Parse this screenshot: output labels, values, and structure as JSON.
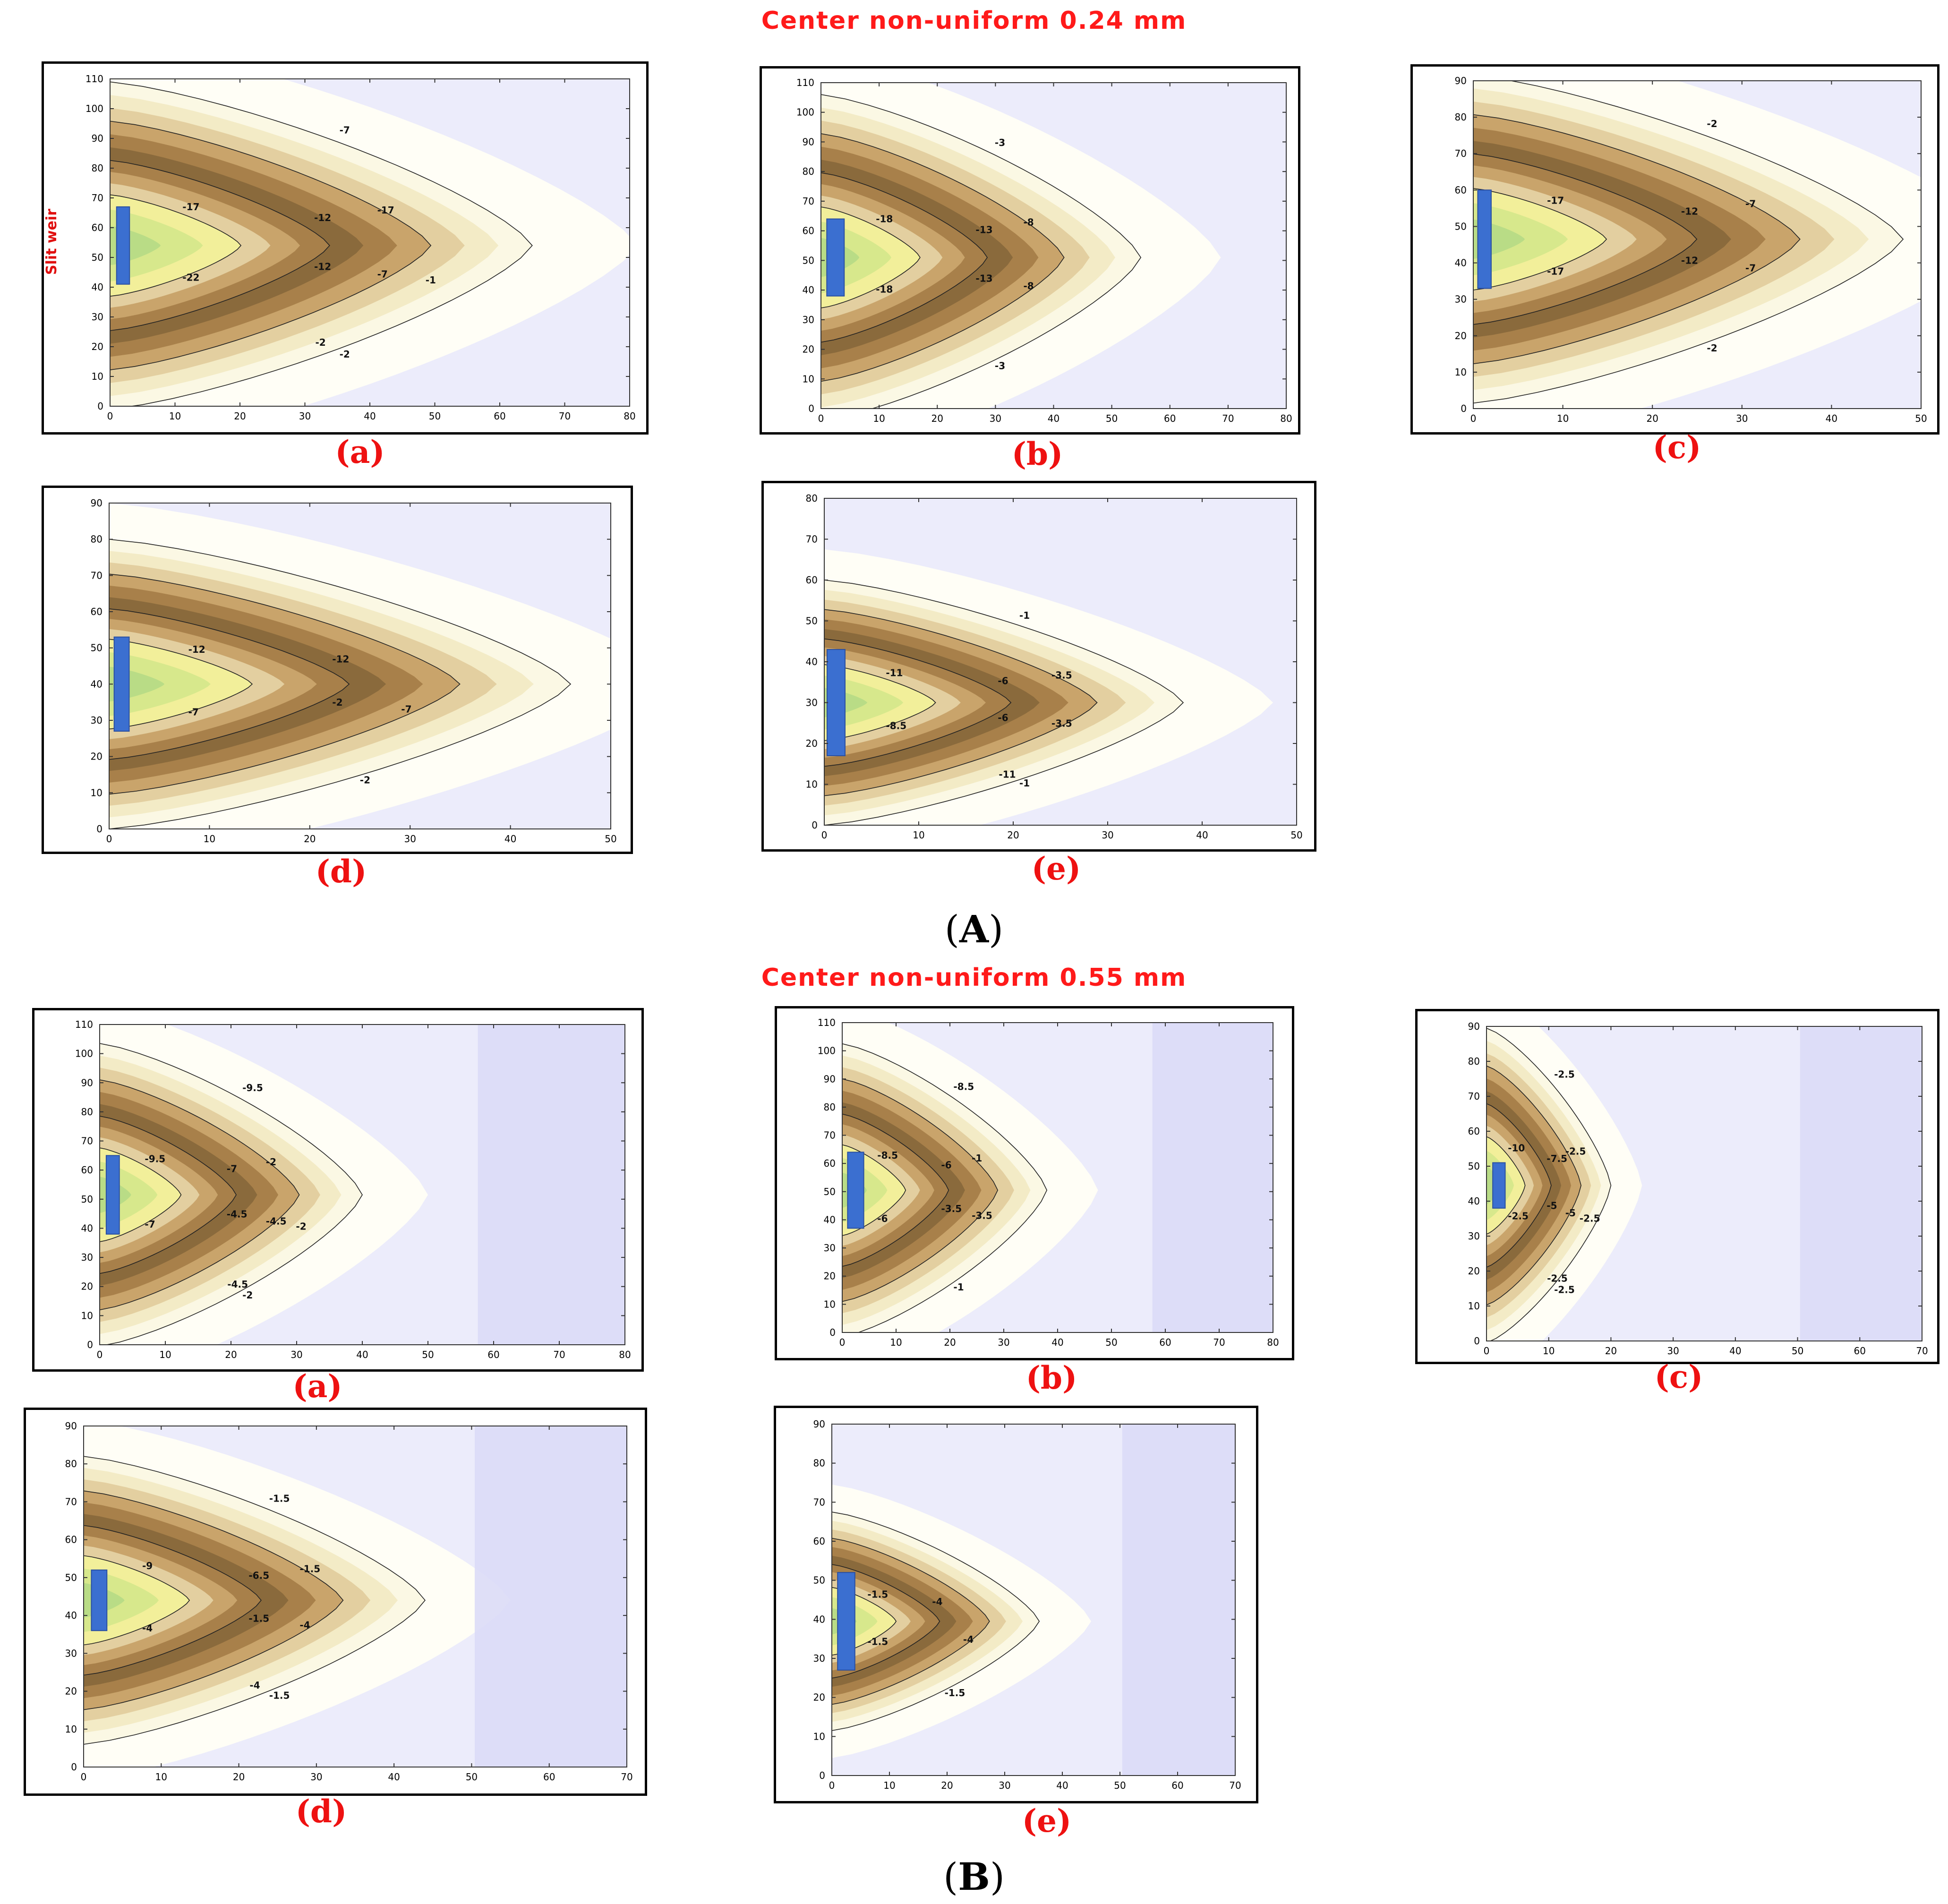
{
  "sections": [
    {
      "title": "Center non-uniform 0.24 mm",
      "mark_open": "(",
      "mark": "A",
      "mark_close": ")"
    },
    {
      "title": "Center non-uniform 0.55 mm",
      "mark_open": "(",
      "mark": "B",
      "mark_close": ")"
    }
  ],
  "colors": {
    "deep": "#8a6a3c",
    "brown": "#a8804a",
    "tan": "#c9a46b",
    "beige": "#e3cfa0",
    "cream": "#f3ebc6",
    "pale": "#fbf8e4",
    "yellow": "#f2ef9a",
    "lime": "#d7e88c",
    "green": "#b9dc86",
    "lavender": "#dcdcf7",
    "lightlav": "#ececfb",
    "weir": "#3b6fd0"
  },
  "chart_data": [
    {
      "type": "contour",
      "id": "A-a",
      "label": "(a)",
      "ylabel": "Slit weir",
      "xlim": [
        0,
        80
      ],
      "ylim": [
        0,
        110
      ],
      "xticks": [
        0,
        10,
        20,
        30,
        40,
        50,
        60,
        70,
        80
      ],
      "yticks": [
        0,
        10,
        20,
        30,
        40,
        50,
        60,
        70,
        80,
        90,
        100,
        110
      ],
      "weir": {
        "x": [
          1,
          3
        ],
        "y": [
          41,
          67
        ]
      },
      "min_contour": -22,
      "contour_labels": [
        "-2",
        "-7",
        "-12",
        "-17",
        "-22",
        "-12",
        "-17",
        "-7",
        "-2",
        "-1"
      ]
    },
    {
      "type": "contour",
      "id": "A-b",
      "label": "(b)",
      "ylabel": "",
      "xlim": [
        0,
        80
      ],
      "ylim": [
        0,
        110
      ],
      "xticks": [
        0,
        10,
        20,
        30,
        40,
        50,
        60,
        70,
        80
      ],
      "yticks": [
        0,
        10,
        20,
        30,
        40,
        50,
        60,
        70,
        80,
        90,
        100,
        110
      ],
      "weir": {
        "x": [
          1,
          4
        ],
        "y": [
          38,
          64
        ]
      },
      "min_contour": -18,
      "contour_labels": [
        "-3",
        "-8",
        "-13",
        "-18",
        "-18",
        "-13",
        "-8",
        "-3"
      ]
    },
    {
      "type": "contour",
      "id": "A-c",
      "label": "(c)",
      "ylabel": "",
      "xlim": [
        0,
        50
      ],
      "ylim": [
        0,
        90
      ],
      "xticks": [
        0,
        10,
        20,
        30,
        40,
        50
      ],
      "yticks": [
        0,
        10,
        20,
        30,
        40,
        50,
        60,
        70,
        80,
        90
      ],
      "weir": {
        "x": [
          0.5,
          2
        ],
        "y": [
          33,
          60
        ]
      },
      "min_contour": -17,
      "contour_labels": [
        "-2",
        "-7",
        "-12",
        "-17",
        "-17",
        "-12",
        "-7",
        "-2"
      ]
    },
    {
      "type": "contour",
      "id": "A-d",
      "label": "(d)",
      "ylabel": "",
      "xlim": [
        0,
        50
      ],
      "ylim": [
        0,
        90
      ],
      "xticks": [
        0,
        10,
        20,
        30,
        40,
        50
      ],
      "yticks": [
        0,
        10,
        20,
        30,
        40,
        50,
        60,
        70,
        80,
        90
      ],
      "weir": {
        "x": [
          0.5,
          2
        ],
        "y": [
          27,
          53
        ]
      },
      "min_contour": -12,
      "contour_labels": [
        "-2",
        "-7",
        "-12",
        "-12",
        "-7",
        "-2"
      ]
    },
    {
      "type": "contour",
      "id": "A-e",
      "label": "(e)",
      "ylabel": "",
      "xlim": [
        0,
        50
      ],
      "ylim": [
        0,
        80
      ],
      "xticks": [
        0,
        10,
        20,
        30,
        40,
        50
      ],
      "yticks": [
        0,
        10,
        20,
        30,
        40,
        50,
        60,
        70,
        80
      ],
      "weir": {
        "x": [
          0.3,
          2.2
        ],
        "y": [
          17,
          43
        ]
      },
      "min_contour": -11,
      "contour_labels": [
        "-1",
        "-3.5",
        "-6",
        "-11",
        "-8.5",
        "-6",
        "-3.5",
        "-1",
        "-11"
      ]
    },
    {
      "type": "contour",
      "id": "B-a",
      "label": "(a)",
      "ylabel": "",
      "xlim": [
        0,
        80
      ],
      "ylim": [
        0,
        110
      ],
      "xticks": [
        0,
        10,
        20,
        30,
        40,
        50,
        60,
        70,
        80
      ],
      "yticks": [
        0,
        10,
        20,
        30,
        40,
        50,
        60,
        70,
        80,
        90,
        100,
        110
      ],
      "weir": {
        "x": [
          1,
          3
        ],
        "y": [
          38,
          65
        ]
      },
      "min_contour": -9.5,
      "contour_labels": [
        "-2",
        "-4.5",
        "-7",
        "-9.5",
        "-7",
        "-4.5",
        "-2",
        "-9.5",
        "-4.5",
        "-2"
      ]
    },
    {
      "type": "contour",
      "id": "B-b",
      "label": "(b)",
      "ylabel": "",
      "xlim": [
        0,
        80
      ],
      "ylim": [
        0,
        110
      ],
      "xticks": [
        0,
        10,
        20,
        30,
        40,
        50,
        60,
        70,
        80
      ],
      "yticks": [
        0,
        10,
        20,
        30,
        40,
        50,
        60,
        70,
        80,
        90,
        100,
        110
      ],
      "weir": {
        "x": [
          1,
          4
        ],
        "y": [
          37,
          64
        ]
      },
      "min_contour": -8.5,
      "contour_labels": [
        "-1",
        "-3.5",
        "-6",
        "-8.5",
        "-6",
        "-3.5",
        "-1",
        "-8.5"
      ]
    },
    {
      "type": "contour",
      "id": "B-c",
      "label": "(c)",
      "ylabel": "",
      "xlim": [
        0,
        70
      ],
      "ylim": [
        0,
        90
      ],
      "xticks": [
        0,
        10,
        20,
        30,
        40,
        50,
        60,
        70
      ],
      "yticks": [
        0,
        10,
        20,
        30,
        40,
        50,
        60,
        70,
        80,
        90
      ],
      "weir": {
        "x": [
          1,
          3
        ],
        "y": [
          38,
          51
        ]
      },
      "min_contour": -10,
      "contour_labels": [
        "-2.5",
        "-5",
        "-7.5",
        "-10",
        "-2.5",
        "-5",
        "-2.5",
        "-2.5",
        "-2.5",
        "-2.5"
      ]
    },
    {
      "type": "contour",
      "id": "B-d",
      "label": "(d)",
      "ylabel": "",
      "xlim": [
        0,
        70
      ],
      "ylim": [
        0,
        90
      ],
      "xticks": [
        0,
        10,
        20,
        30,
        40,
        50,
        60,
        70
      ],
      "yticks": [
        0,
        10,
        20,
        30,
        40,
        50,
        60,
        70,
        80,
        90
      ],
      "weir": {
        "x": [
          1,
          3
        ],
        "y": [
          36,
          52
        ]
      },
      "min_contour": -9,
      "contour_labels": [
        "-1.5",
        "-4",
        "-6.5",
        "-9",
        "-4",
        "-1.5",
        "-1.5",
        "-1.5",
        "-4"
      ]
    },
    {
      "type": "contour",
      "id": "B-e",
      "label": "(e)",
      "ylabel": "",
      "xlim": [
        0,
        70
      ],
      "ylim": [
        0,
        90
      ],
      "xticks": [
        0,
        10,
        20,
        30,
        40,
        50,
        60,
        70
      ],
      "yticks": [
        0,
        10,
        20,
        30,
        40,
        50,
        60,
        70,
        80,
        90
      ],
      "weir": {
        "x": [
          1,
          4
        ],
        "y": [
          27,
          52
        ]
      },
      "min_contour": -4,
      "contour_labels": [
        "-1.5",
        "-4",
        "-4",
        "-1.5",
        "-1.5"
      ]
    }
  ]
}
